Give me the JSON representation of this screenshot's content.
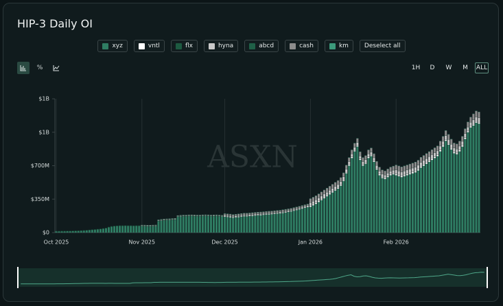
{
  "ui": {
    "title": "HIP-3 Daily OI",
    "deselect": "Deselect all",
    "percent": "%",
    "ranges": [
      "1H",
      "D",
      "W",
      "M",
      "ALL"
    ],
    "watermark": "ASXN"
  },
  "chart_data": {
    "type": "bar",
    "stacked": true,
    "categories": [
      "Oct 2025",
      null,
      null,
      null,
      null,
      null,
      null,
      null,
      null,
      null,
      null,
      null,
      null,
      null,
      null,
      null,
      null,
      null,
      null,
      null,
      null,
      null,
      null,
      null,
      null,
      null,
      null,
      null,
      null,
      null,
      null,
      "Nov 2025",
      null,
      null,
      null,
      null,
      null,
      null,
      null,
      null,
      null,
      null,
      null,
      null,
      null,
      null,
      null,
      null,
      null,
      null,
      null,
      null,
      null,
      null,
      null,
      null,
      null,
      null,
      null,
      null,
      null,
      "Dec 2025",
      null,
      null,
      null,
      null,
      null,
      null,
      null,
      null,
      null,
      null,
      null,
      null,
      null,
      null,
      null,
      null,
      null,
      null,
      null,
      null,
      null,
      null,
      null,
      null,
      null,
      null,
      null,
      null,
      null,
      null,
      "Jan 2026",
      null,
      null,
      null,
      null,
      null,
      null,
      null,
      null,
      null,
      null,
      null,
      null,
      null,
      null,
      null,
      null,
      null,
      null,
      null,
      null,
      null,
      null,
      null,
      null,
      null,
      null,
      null,
      null,
      null,
      null,
      "Feb 2026",
      null,
      null,
      null,
      null,
      null,
      null,
      null,
      null,
      null,
      null,
      null,
      null,
      null,
      null,
      null,
      null,
      null,
      null,
      null,
      null,
      null,
      null,
      null,
      null,
      null,
      null,
      null,
      null,
      null,
      null
    ],
    "series": [
      {
        "name": "xyz",
        "color": "#2f7d63",
        "values": [
          12,
          12,
          13,
          13,
          14,
          14,
          15,
          16,
          17,
          18,
          20,
          22,
          25,
          28,
          30,
          33,
          36,
          40,
          45,
          55,
          62,
          66,
          68,
          70,
          70,
          71,
          70,
          70,
          69,
          70,
          70,
          65,
          65,
          64,
          64,
          65,
          66,
          120,
          125,
          128,
          130,
          132,
          134,
          135,
          165,
          168,
          170,
          170,
          172,
          172,
          171,
          170,
          170,
          172,
          173,
          172,
          170,
          171,
          172,
          170,
          168,
          165,
          163,
          160,
          155,
          158,
          162,
          166,
          170,
          170,
          172,
          175,
          178,
          180,
          182,
          185,
          188,
          190,
          192,
          195,
          198,
          200,
          205,
          210,
          215,
          220,
          228,
          235,
          242,
          250,
          258,
          265,
          270,
          285,
          300,
          320,
          340,
          360,
          380,
          400,
          420,
          440,
          460,
          490,
          540,
          620,
          700,
          780,
          850,
          900,
          760,
          700,
          720,
          780,
          800,
          740,
          660,
          600,
          570,
          560,
          580,
          600,
          610,
          600,
          590,
          580,
          590,
          600,
          610,
          620,
          630,
          650,
          680,
          700,
          720,
          740,
          760,
          780,
          800,
          850,
          900,
          960,
          920,
          870,
          830,
          820,
          850,
          900,
          980,
          1050,
          1100,
          1120,
          1150,
          1140
        ]
      },
      {
        "name": "vntl",
        "color": "#ffffff",
        "values": [
          0,
          0,
          0,
          0,
          0,
          0,
          0,
          0,
          0,
          0,
          0,
          0,
          0,
          0,
          0,
          0,
          0,
          0,
          0,
          0,
          0,
          0,
          0,
          0,
          0,
          0,
          0,
          0,
          0,
          0,
          0,
          0,
          0,
          0,
          0,
          0,
          0,
          0,
          0,
          0,
          0,
          0,
          0,
          0,
          0,
          0,
          0,
          0,
          0,
          0,
          0,
          0,
          0,
          0,
          0,
          0,
          0,
          0,
          0,
          0,
          0,
          5,
          5,
          5,
          5,
          5,
          5,
          5,
          5,
          5,
          5,
          5,
          5,
          5,
          5,
          5,
          5,
          5,
          5,
          5,
          5,
          5,
          5,
          5,
          5,
          5,
          5,
          5,
          5,
          5,
          5,
          5,
          10,
          10,
          10,
          10,
          10,
          10,
          10,
          10,
          10,
          10,
          10,
          10,
          10,
          10,
          10,
          10,
          10,
          10,
          10,
          10,
          10,
          10,
          10,
          10,
          10,
          10,
          10,
          10,
          10,
          10,
          10,
          12,
          12,
          12,
          12,
          12,
          12,
          12,
          12,
          12,
          12,
          12,
          12,
          12,
          12,
          12,
          12,
          12,
          12,
          12,
          12,
          12,
          12,
          12,
          12,
          12,
          12,
          12,
          12,
          12,
          12,
          12
        ]
      },
      {
        "name": "flx",
        "color": "#1d5a41",
        "values": [
          2,
          2,
          2,
          2,
          2,
          2,
          2,
          2,
          2,
          2,
          2,
          2,
          2,
          2,
          2,
          2,
          2,
          2,
          2,
          2,
          2,
          2,
          2,
          2,
          2,
          2,
          2,
          2,
          2,
          2,
          2,
          2,
          2,
          2,
          2,
          2,
          2,
          2,
          2,
          2,
          2,
          2,
          2,
          2,
          2,
          2,
          2,
          2,
          2,
          2,
          2,
          2,
          2,
          2,
          2,
          2,
          2,
          2,
          2,
          2,
          2,
          2,
          2,
          2,
          2,
          2,
          2,
          2,
          2,
          2,
          2,
          2,
          2,
          2,
          2,
          2,
          2,
          2,
          2,
          2,
          2,
          2,
          2,
          2,
          2,
          2,
          2,
          2,
          2,
          2,
          2,
          2,
          2,
          2,
          2,
          2,
          2,
          2,
          2,
          2,
          2,
          2,
          2,
          2,
          2,
          2,
          2,
          2,
          2,
          2,
          2,
          2,
          2,
          2,
          2,
          2,
          2,
          2,
          2,
          2,
          2,
          2,
          2,
          2,
          2,
          2,
          2,
          2,
          2,
          2,
          2,
          2,
          2,
          2,
          2,
          2,
          2,
          2,
          2,
          2,
          2,
          2,
          2,
          2,
          2,
          2,
          2,
          2,
          2,
          2,
          2,
          2,
          2,
          2
        ]
      },
      {
        "name": "hyna",
        "color": "#c9c9c9",
        "values": [
          0,
          0,
          0,
          0,
          0,
          0,
          0,
          0,
          0,
          0,
          0,
          0,
          0,
          0,
          0,
          0,
          0,
          0,
          0,
          0,
          0,
          0,
          0,
          0,
          0,
          0,
          0,
          0,
          0,
          0,
          0,
          3,
          3,
          3,
          3,
          3,
          3,
          3,
          3,
          3,
          3,
          3,
          3,
          3,
          3,
          3,
          3,
          3,
          3,
          3,
          3,
          3,
          3,
          3,
          3,
          3,
          3,
          3,
          3,
          3,
          3,
          8,
          8,
          8,
          8,
          8,
          8,
          8,
          8,
          8,
          8,
          8,
          8,
          8,
          8,
          8,
          8,
          8,
          8,
          8,
          8,
          8,
          8,
          8,
          8,
          8,
          8,
          8,
          8,
          8,
          8,
          8,
          30,
          30,
          30,
          30,
          30,
          30,
          30,
          30,
          30,
          30,
          30,
          30,
          30,
          30,
          30,
          30,
          30,
          30,
          30,
          30,
          30,
          30,
          30,
          30,
          30,
          30,
          30,
          30,
          30,
          30,
          30,
          40,
          40,
          40,
          40,
          40,
          40,
          40,
          40,
          40,
          40,
          40,
          40,
          40,
          40,
          40,
          40,
          40,
          40,
          40,
          40,
          40,
          40,
          40,
          40,
          40,
          40,
          40,
          40,
          45,
          45,
          45
        ]
      },
      {
        "name": "abcd",
        "color": "#1f6047",
        "values": [
          2,
          2,
          2,
          2,
          2,
          2,
          2,
          2,
          2,
          2,
          2,
          2,
          2,
          2,
          2,
          2,
          2,
          2,
          2,
          2,
          2,
          2,
          2,
          2,
          2,
          2,
          2,
          2,
          2,
          2,
          2,
          2,
          2,
          2,
          2,
          2,
          2,
          2,
          2,
          2,
          2,
          2,
          2,
          2,
          2,
          2,
          2,
          2,
          2,
          2,
          2,
          2,
          2,
          2,
          2,
          2,
          2,
          2,
          2,
          2,
          2,
          2,
          2,
          2,
          2,
          2,
          2,
          2,
          2,
          2,
          2,
          2,
          2,
          2,
          2,
          2,
          2,
          2,
          2,
          2,
          2,
          2,
          2,
          2,
          2,
          2,
          2,
          2,
          2,
          2,
          2,
          2,
          2,
          2,
          2,
          2,
          2,
          2,
          2,
          2,
          2,
          2,
          2,
          2,
          2,
          2,
          2,
          2,
          2,
          2,
          2,
          2,
          2,
          2,
          2,
          2,
          2,
          2,
          2,
          2,
          2,
          2,
          2,
          2,
          2,
          2,
          2,
          2,
          2,
          2,
          2,
          2,
          2,
          2,
          2,
          2,
          2,
          2,
          2,
          2,
          2,
          2,
          2,
          2,
          2,
          2,
          2,
          2,
          2,
          2,
          2,
          2,
          2,
          2
        ]
      },
      {
        "name": "cash",
        "color": "#8c8c8c",
        "values": [
          0,
          0,
          0,
          0,
          0,
          0,
          0,
          0,
          0,
          0,
          0,
          0,
          0,
          0,
          0,
          0,
          0,
          0,
          0,
          0,
          0,
          0,
          0,
          0,
          0,
          0,
          0,
          0,
          0,
          0,
          0,
          5,
          5,
          5,
          5,
          5,
          5,
          5,
          5,
          5,
          5,
          5,
          5,
          5,
          5,
          5,
          5,
          5,
          5,
          5,
          5,
          5,
          5,
          5,
          5,
          5,
          5,
          5,
          5,
          5,
          5,
          15,
          15,
          15,
          15,
          15,
          15,
          15,
          15,
          15,
          15,
          15,
          15,
          15,
          15,
          15,
          15,
          15,
          15,
          15,
          15,
          15,
          15,
          15,
          15,
          15,
          15,
          15,
          15,
          15,
          15,
          15,
          40,
          40,
          40,
          40,
          40,
          40,
          40,
          40,
          40,
          40,
          40,
          40,
          40,
          40,
          40,
          40,
          40,
          40,
          40,
          40,
          40,
          40,
          40,
          40,
          40,
          40,
          40,
          40,
          40,
          40,
          40,
          50,
          50,
          50,
          50,
          50,
          50,
          50,
          50,
          50,
          50,
          50,
          50,
          50,
          50,
          50,
          50,
          50,
          50,
          50,
          50,
          50,
          50,
          50,
          50,
          50,
          50,
          50,
          50,
          60,
          60,
          60
        ]
      },
      {
        "name": "km",
        "color": "#3c9a7b",
        "values": [
          0,
          0,
          0,
          0,
          0,
          0,
          0,
          0,
          0,
          0,
          0,
          0,
          0,
          0,
          0,
          0,
          0,
          0,
          0,
          0,
          0,
          0,
          0,
          0,
          0,
          0,
          0,
          0,
          0,
          0,
          0,
          3,
          3,
          3,
          3,
          3,
          3,
          3,
          3,
          3,
          3,
          3,
          3,
          3,
          3,
          3,
          3,
          3,
          3,
          3,
          3,
          3,
          3,
          3,
          3,
          3,
          3,
          3,
          3,
          3,
          3,
          3,
          3,
          3,
          3,
          3,
          3,
          3,
          3,
          3,
          3,
          3,
          3,
          3,
          3,
          3,
          3,
          3,
          3,
          3,
          3,
          3,
          3,
          3,
          3,
          3,
          3,
          3,
          3,
          3,
          3,
          3,
          3,
          3,
          3,
          3,
          3,
          3,
          3,
          3,
          3,
          3,
          3,
          3,
          3,
          3,
          3,
          3,
          3,
          3,
          3,
          3,
          3,
          3,
          3,
          3,
          3,
          3,
          3,
          3,
          3,
          3,
          3,
          3,
          3,
          3,
          3,
          3,
          3,
          3,
          3,
          3,
          3,
          3,
          3,
          3,
          3,
          3,
          3,
          3,
          3,
          3,
          3,
          3,
          3,
          3,
          3,
          3,
          3,
          3,
          3,
          3,
          3,
          3
        ]
      }
    ],
    "ylim": [
      0,
      1400
    ],
    "yticks": [
      {
        "value": 0,
        "label": "$0"
      },
      {
        "value": 350,
        "label": "$350M"
      },
      {
        "value": 700,
        "label": "$700M"
      },
      {
        "value": 1050,
        "label": "$1B"
      },
      {
        "value": 1400,
        "label": "$1B"
      }
    ],
    "xgrid": true
  }
}
